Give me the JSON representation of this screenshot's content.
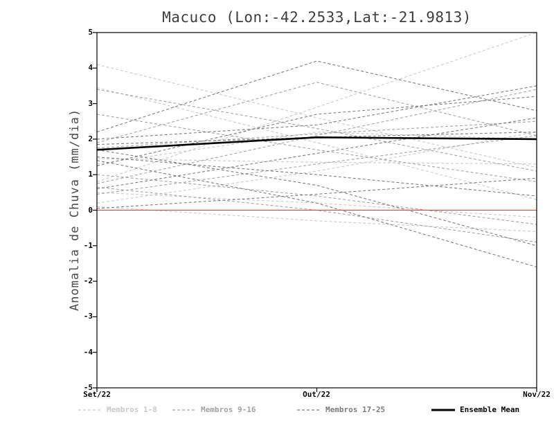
{
  "chart_data": {
    "type": "line",
    "title": "Macuco (Lon:-42.2533,Lat:-21.9813)",
    "ylabel": "Anomalia de Chuva (mm/dia)",
    "xlabel": "",
    "x_categories": [
      "Set/22",
      "Out/22",
      "Nov/22"
    ],
    "ylim": [
      -5,
      5
    ],
    "y_ticks": [
      5,
      4,
      3,
      2,
      1,
      0,
      -1,
      -2,
      -3,
      -4,
      -5
    ],
    "grid": false,
    "legend_position": "bottom",
    "zero_line": {
      "value": 0,
      "color": "#ff3326"
    },
    "member_groups": [
      {
        "name": "Membros 1-8",
        "color": "#c9c9c9",
        "style": "dashed",
        "members": [
          [
            4.1,
            2.6,
            1.2
          ],
          [
            0.8,
            2.9,
            5.0
          ],
          [
            3.45,
            1.9,
            0.3
          ],
          [
            1.45,
            1.35,
            1.3
          ],
          [
            0.2,
            1.1,
            2.2
          ],
          [
            0.5,
            0.2,
            -0.2
          ],
          [
            1.3,
            2.2,
            2.0
          ],
          [
            0.1,
            -0.3,
            -0.6
          ]
        ]
      },
      {
        "name": "Membros 9-16",
        "color": "#a3a3a3",
        "style": "dashed",
        "members": [
          [
            2.7,
            1.7,
            0.8
          ],
          [
            1.9,
            3.6,
            2.1
          ],
          [
            0.75,
            2.1,
            3.4
          ],
          [
            1.0,
            0.4,
            -0.4
          ],
          [
            1.75,
            2.15,
            2.5
          ],
          [
            0.45,
            1.3,
            2.1
          ],
          [
            3.4,
            2.3,
            1.1
          ],
          [
            0.65,
            0.0,
            -0.9
          ]
        ]
      },
      {
        "name": "Membros 17-25",
        "color": "#7c7c7c",
        "style": "dashed",
        "members": [
          [
            2.2,
            4.2,
            2.8
          ],
          [
            1.85,
            2.05,
            2.2
          ],
          [
            1.5,
            1.0,
            0.4
          ],
          [
            0.6,
            1.6,
            2.6
          ],
          [
            1.4,
            0.2,
            -1.6
          ],
          [
            2.0,
            2.4,
            3.5
          ],
          [
            1.25,
            2.7,
            3.2
          ],
          [
            0.05,
            0.45,
            0.9
          ],
          [
            1.7,
            0.7,
            -1.0
          ]
        ]
      }
    ],
    "ensemble_mean": {
      "name": "Ensemble Mean",
      "color": "#000000",
      "style": "solid",
      "values": [
        1.7,
        2.05,
        2.0
      ]
    },
    "legend": [
      {
        "label": "Membros 1-8",
        "color": "#c9c9c9",
        "style": "dashed"
      },
      {
        "label": "Membros 9-16",
        "color": "#a3a3a3",
        "style": "dashed"
      },
      {
        "label": "Membros 17-25",
        "color": "#7c7c7c",
        "style": "dashed"
      },
      {
        "label": "Ensemble Mean",
        "color": "#000000",
        "style": "solid"
      }
    ]
  }
}
